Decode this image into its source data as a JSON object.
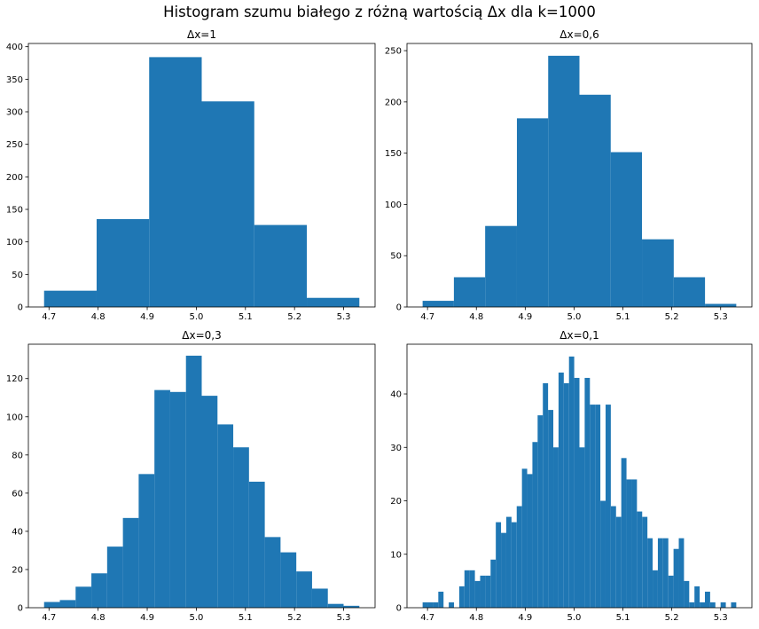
{
  "figure": {
    "title": "Histogram szumu białego z różną wartością Δx dla k=1000"
  },
  "chart_data": [
    {
      "type": "bar",
      "title": "Δx=1",
      "xlabel": "",
      "ylabel": "",
      "xlim": [
        4.658,
        5.364
      ],
      "ylim": [
        0,
        405
      ],
      "xticks": [
        4.7,
        4.8,
        4.9,
        5.0,
        5.1,
        5.2,
        5.3
      ],
      "xticklabels": [
        "4.7",
        "4.8",
        "4.9",
        "5.0",
        "5.1",
        "5.2",
        "5.3"
      ],
      "yticks": [
        0,
        50,
        100,
        150,
        200,
        250,
        300,
        350,
        400
      ],
      "bin_edges": [
        4.69,
        4.797,
        4.904,
        5.011,
        5.118,
        5.225,
        5.332
      ],
      "counts": [
        25,
        135,
        384,
        316,
        126,
        14
      ],
      "color": "#1f77b4"
    },
    {
      "type": "bar",
      "title": "Δx=0,6",
      "xlabel": "",
      "ylabel": "",
      "xlim": [
        4.658,
        5.364
      ],
      "ylim": [
        0,
        257
      ],
      "xticks": [
        4.7,
        4.8,
        4.9,
        5.0,
        5.1,
        5.2,
        5.3
      ],
      "xticklabels": [
        "4.7",
        "4.8",
        "4.9",
        "5.0",
        "5.1",
        "5.2",
        "5.3"
      ],
      "yticks": [
        0,
        50,
        100,
        150,
        200,
        250
      ],
      "bin_edges": [
        4.69,
        4.754,
        4.818,
        4.883,
        4.947,
        5.011,
        5.075,
        5.139,
        5.204,
        5.268,
        5.332
      ],
      "counts": [
        6,
        29,
        79,
        184,
        245,
        207,
        151,
        66,
        29,
        3
      ],
      "color": "#1f77b4"
    },
    {
      "type": "bar",
      "title": "Δx=0,3",
      "xlabel": "",
      "ylabel": "",
      "xlim": [
        4.658,
        5.364
      ],
      "ylim": [
        0,
        138
      ],
      "xticks": [
        4.7,
        4.8,
        4.9,
        5.0,
        5.1,
        5.2,
        5.3
      ],
      "xticklabels": [
        "4.7",
        "4.8",
        "4.9",
        "5.0",
        "5.1",
        "5.2",
        "5.3"
      ],
      "yticks": [
        0,
        20,
        40,
        60,
        80,
        100,
        120
      ],
      "bin_edges": [
        4.69,
        4.7221,
        4.7542,
        4.7863,
        4.8184,
        4.8505,
        4.8826,
        4.9147,
        4.9468,
        4.9789,
        5.011,
        5.0431,
        5.0752,
        5.1073,
        5.1394,
        5.1715,
        5.2036,
        5.2357,
        5.2678,
        5.2999,
        5.332
      ],
      "counts": [
        3,
        4,
        11,
        18,
        32,
        47,
        70,
        114,
        113,
        132,
        111,
        96,
        84,
        66,
        37,
        29,
        19,
        10,
        2,
        1
      ],
      "color": "#1f77b4"
    },
    {
      "type": "bar",
      "title": "Δx=0,1",
      "xlabel": "",
      "ylabel": "",
      "xlim": [
        4.658,
        5.364
      ],
      "ylim": [
        0,
        49.3
      ],
      "xticks": [
        4.7,
        4.8,
        4.9,
        5.0,
        5.1,
        5.2,
        5.3
      ],
      "xticklabels": [
        "4.7",
        "4.8",
        "4.9",
        "5.0",
        "5.1",
        "5.2",
        "5.3"
      ],
      "yticks": [
        0,
        10,
        20,
        30,
        40
      ],
      "bin_range": [
        4.69,
        5.332
      ],
      "bins": 60,
      "counts": [
        1,
        1,
        1,
        3,
        0,
        1,
        0,
        4,
        7,
        7,
        5,
        6,
        6,
        9,
        16,
        14,
        17,
        16,
        19,
        26,
        25,
        31,
        36,
        42,
        37,
        30,
        44,
        42,
        47,
        43,
        30,
        43,
        38,
        38,
        20,
        38,
        19,
        17,
        28,
        24,
        24,
        18,
        17,
        13,
        7,
        13,
        13,
        6,
        11,
        13,
        5,
        1,
        4,
        1,
        3,
        1,
        0,
        1,
        0,
        1
      ],
      "color": "#1f77b4"
    }
  ]
}
